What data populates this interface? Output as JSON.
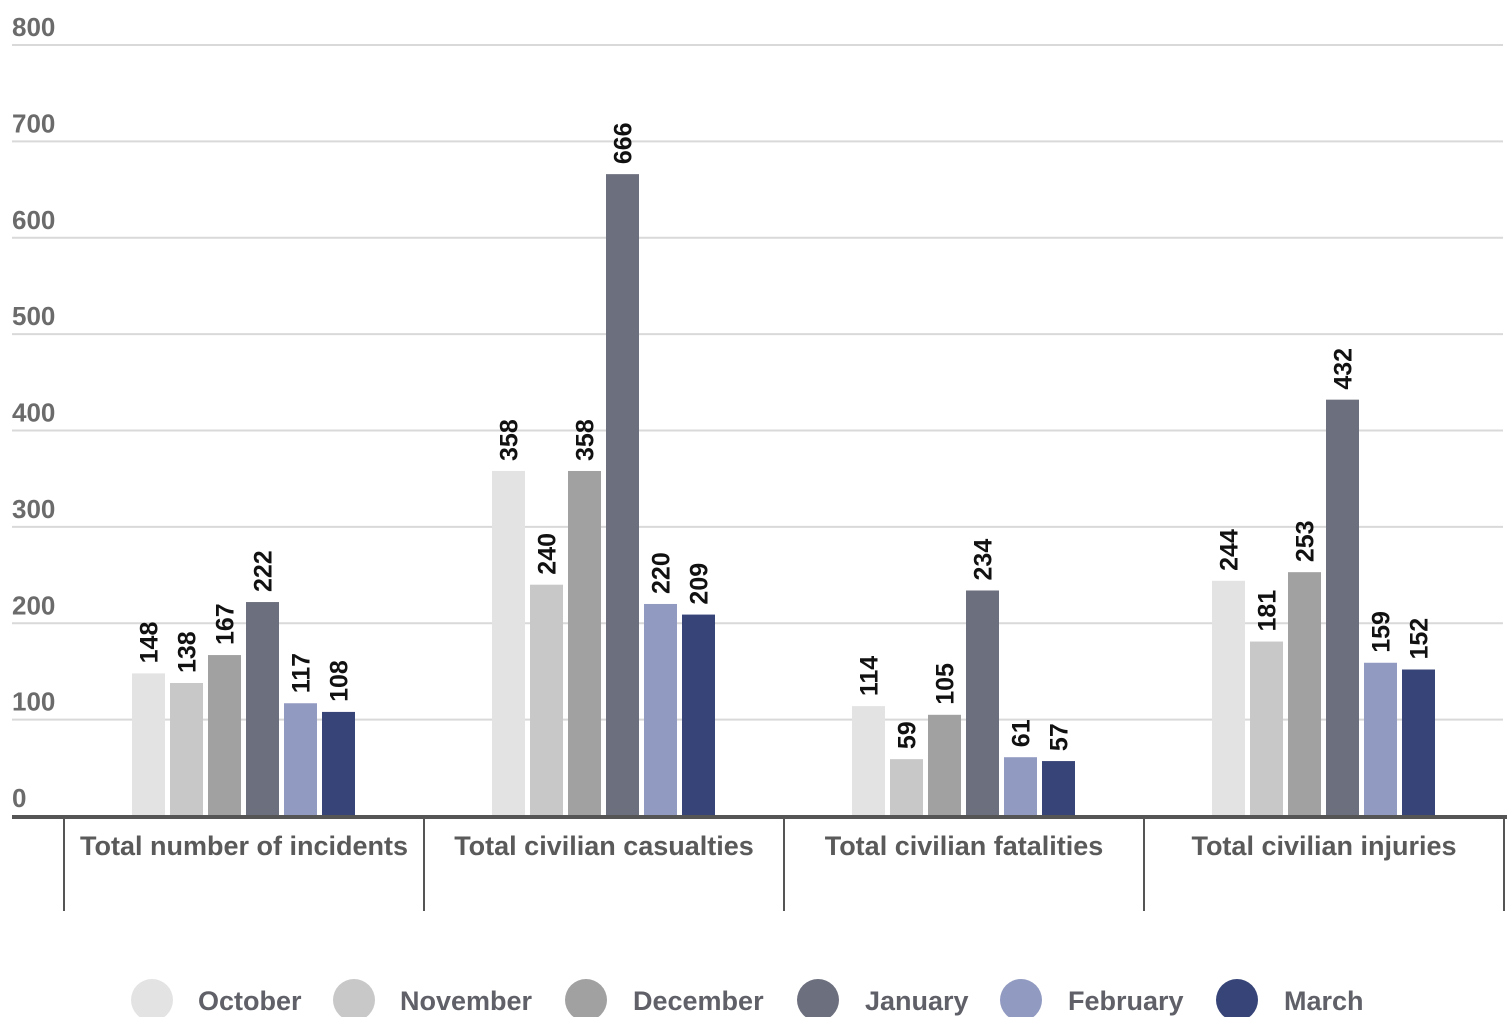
{
  "chart_data": {
    "type": "bar",
    "categories": [
      "Total number of incidents",
      "Total civilian casualties",
      "Total civilian fatalities",
      "Total civilian injuries"
    ],
    "series": [
      {
        "name": "October",
        "values": [
          148,
          358,
          114,
          244
        ],
        "color": "#e3e3e3"
      },
      {
        "name": "November",
        "values": [
          138,
          240,
          59,
          181
        ],
        "color": "#c8c8c8"
      },
      {
        "name": "December",
        "values": [
          167,
          358,
          105,
          253
        ],
        "color": "#a1a1a1"
      },
      {
        "name": "January",
        "values": [
          222,
          666,
          234,
          432
        ],
        "color": "#6c6f7d"
      },
      {
        "name": "February",
        "values": [
          117,
          220,
          61,
          159
        ],
        "color": "#919ac1"
      },
      {
        "name": "March",
        "values": [
          108,
          209,
          57,
          152
        ],
        "color": "#364478"
      }
    ],
    "ylim": [
      0,
      800
    ],
    "yticks": [
      0,
      100,
      200,
      300,
      400,
      500,
      600,
      700,
      800
    ],
    "grid": true,
    "legend": "bottom"
  }
}
